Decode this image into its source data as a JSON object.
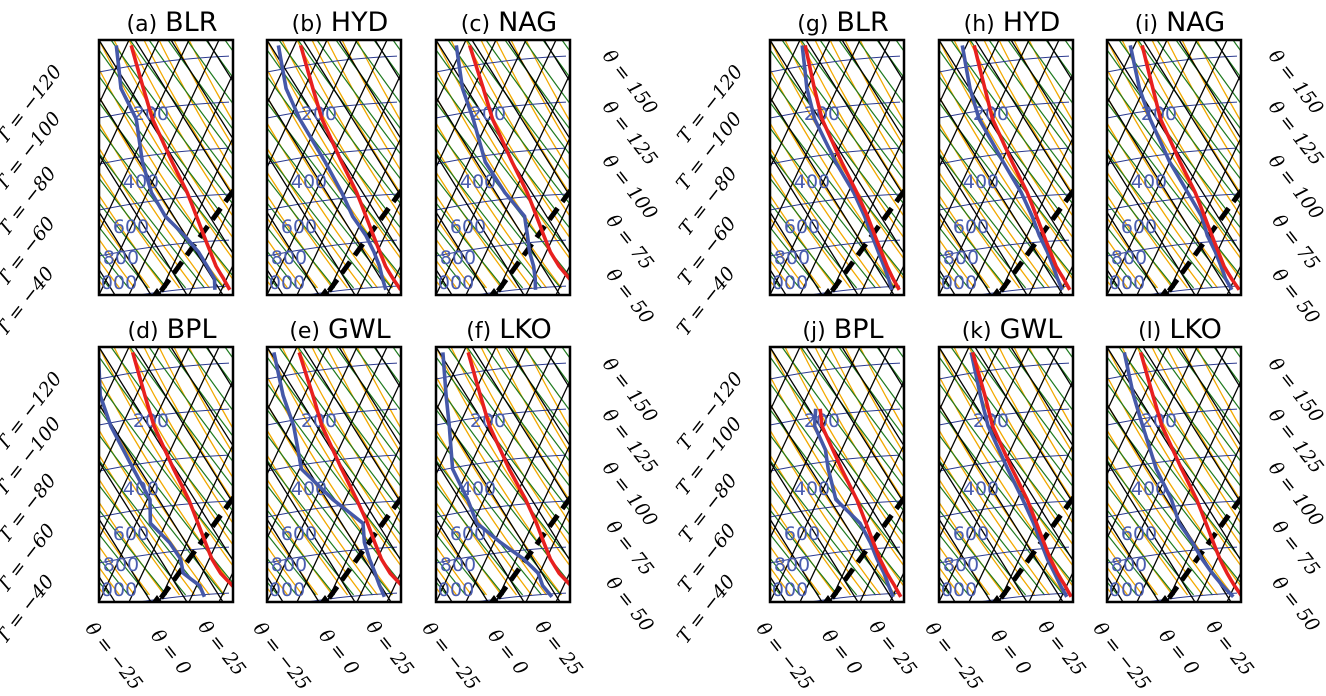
{
  "figure": {
    "colors": {
      "frame": "#000000",
      "isotherm": "#000000",
      "dry_adiabat": "#1f7a1f",
      "moist_adiabat": "#f2a900",
      "isobar": "#2b3a8f",
      "temperature": "#e8201f",
      "dewpoint": "#4558a8",
      "parcel": "#000000"
    },
    "pressure_labels": [
      "200",
      "400",
      "600",
      "800",
      "1000"
    ],
    "left_axis_labels": [
      "T = −120",
      "T = −100",
      "T = −80",
      "T = −60",
      "T = −40"
    ],
    "right_axis_labels": [
      "θ = 150",
      "θ = 125",
      "θ = 100",
      "θ = 75",
      "θ = 50"
    ],
    "bottom_axis_labels": [
      "θ = −25",
      "θ = 0",
      "θ = 25"
    ]
  },
  "chart_data": [
    {
      "type": "line",
      "title": "(a) BLR",
      "tag": "(a)",
      "station": "BLR",
      "temperature": [
        [
          1000,
          27
        ],
        [
          900,
          21
        ],
        [
          800,
          14
        ],
        [
          700,
          8
        ],
        [
          600,
          1
        ],
        [
          500,
          -7
        ],
        [
          400,
          -17
        ],
        [
          300,
          -32
        ],
        [
          200,
          -52
        ],
        [
          150,
          -63
        ],
        [
          100,
          -78
        ]
      ],
      "dewpoint": [
        [
          1000,
          17
        ],
        [
          900,
          15
        ],
        [
          800,
          8
        ],
        [
          700,
          0
        ],
        [
          600,
          -12
        ],
        [
          500,
          -28
        ],
        [
          400,
          -41
        ],
        [
          300,
          -52
        ],
        [
          200,
          -63
        ],
        [
          150,
          -78
        ],
        [
          100,
          -88
        ]
      ]
    },
    {
      "type": "line",
      "title": "(b) HYD",
      "tag": "(b)",
      "station": "HYD",
      "temperature": [
        [
          1000,
          29
        ],
        [
          900,
          22
        ],
        [
          800,
          15
        ],
        [
          700,
          9
        ],
        [
          600,
          2
        ],
        [
          500,
          -6
        ],
        [
          400,
          -16
        ],
        [
          300,
          -31
        ],
        [
          200,
          -51
        ],
        [
          150,
          -62
        ],
        [
          100,
          -77
        ]
      ],
      "dewpoint": [
        [
          1000,
          19
        ],
        [
          900,
          15
        ],
        [
          800,
          11
        ],
        [
          700,
          5
        ],
        [
          600,
          -3
        ],
        [
          500,
          -15
        ],
        [
          400,
          -26
        ],
        [
          300,
          -42
        ],
        [
          200,
          -66
        ],
        [
          150,
          -80
        ],
        [
          100,
          -92
        ]
      ]
    },
    {
      "type": "line",
      "title": "(c) NAG",
      "tag": "(c)",
      "station": "NAG",
      "temperature": [
        [
          1000,
          36
        ],
        [
          900,
          27
        ],
        [
          800,
          18
        ],
        [
          700,
          10
        ],
        [
          600,
          3
        ],
        [
          500,
          -5
        ],
        [
          400,
          -15
        ],
        [
          300,
          -30
        ],
        [
          200,
          -50
        ],
        [
          150,
          -61
        ],
        [
          100,
          -77
        ]
      ],
      "dewpoint": [
        [
          1000,
          6
        ],
        [
          900,
          4
        ],
        [
          800,
          1
        ],
        [
          700,
          -4
        ],
        [
          600,
          -8
        ],
        [
          500,
          -13
        ],
        [
          400,
          -30
        ],
        [
          300,
          -48
        ],
        [
          200,
          -63
        ],
        [
          150,
          -75
        ],
        [
          100,
          -86
        ]
      ]
    },
    {
      "type": "line",
      "title": "(d) BPL",
      "tag": "(d)",
      "station": "BPL",
      "temperature": [
        [
          1000,
          36
        ],
        [
          900,
          27
        ],
        [
          800,
          17
        ],
        [
          700,
          9
        ],
        [
          600,
          2
        ],
        [
          500,
          -6
        ],
        [
          400,
          -16
        ],
        [
          300,
          -31
        ],
        [
          200,
          -51
        ],
        [
          150,
          -62
        ],
        [
          100,
          -77
        ]
      ],
      "dewpoint": [
        [
          1000,
          10
        ],
        [
          900,
          5
        ],
        [
          800,
          -8
        ],
        [
          700,
          -12
        ],
        [
          600,
          -22
        ],
        [
          500,
          -38
        ],
        [
          400,
          -42
        ],
        [
          300,
          -58
        ],
        [
          200,
          -80
        ],
        [
          150,
          -92
        ],
        [
          100,
          -100
        ]
      ]
    },
    {
      "type": "line",
      "title": "(e) GWL",
      "tag": "(e)",
      "station": "GWL",
      "temperature": [
        [
          1000,
          36
        ],
        [
          900,
          28
        ],
        [
          800,
          18
        ],
        [
          700,
          10
        ],
        [
          600,
          3
        ],
        [
          500,
          -5
        ],
        [
          400,
          -16
        ],
        [
          300,
          -31
        ],
        [
          200,
          -51
        ],
        [
          150,
          -62
        ],
        [
          100,
          -78
        ]
      ],
      "dewpoint": [
        [
          1000,
          18
        ],
        [
          900,
          13
        ],
        [
          800,
          8
        ],
        [
          700,
          2
        ],
        [
          600,
          -4
        ],
        [
          500,
          -8
        ],
        [
          400,
          -32
        ],
        [
          300,
          -58
        ],
        [
          200,
          -70
        ],
        [
          150,
          -82
        ],
        [
          100,
          -95
        ]
      ]
    },
    {
      "type": "line",
      "title": "(f) LKO",
      "tag": "(f)",
      "station": "LKO",
      "temperature": [
        [
          1000,
          38
        ],
        [
          900,
          28
        ],
        [
          800,
          18
        ],
        [
          700,
          10
        ],
        [
          600,
          3
        ],
        [
          500,
          -5
        ],
        [
          400,
          -16
        ],
        [
          300,
          -32
        ],
        [
          200,
          -52
        ],
        [
          150,
          -63
        ],
        [
          100,
          -78
        ]
      ],
      "dewpoint": [
        [
          1000,
          17
        ],
        [
          900,
          9
        ],
        [
          800,
          4
        ],
        [
          700,
          -8
        ],
        [
          600,
          -26
        ],
        [
          500,
          -45
        ],
        [
          400,
          -55
        ],
        [
          300,
          -70
        ],
        [
          200,
          -79
        ],
        [
          150,
          -86
        ],
        [
          100,
          -95
        ]
      ]
    },
    {
      "type": "line",
      "title": "(g) BLR",
      "tag": "(g)",
      "station": "BLR",
      "temperature": [
        [
          1000,
          26
        ],
        [
          900,
          20
        ],
        [
          800,
          14
        ],
        [
          700,
          8
        ],
        [
          600,
          1
        ],
        [
          500,
          -7
        ],
        [
          400,
          -18
        ],
        [
          300,
          -33
        ],
        [
          200,
          -53
        ],
        [
          150,
          -63
        ],
        [
          100,
          -76
        ]
      ],
      "dewpoint": [
        [
          1000,
          21
        ],
        [
          900,
          17
        ],
        [
          800,
          12
        ],
        [
          700,
          6
        ],
        [
          600,
          -1
        ],
        [
          500,
          -9
        ],
        [
          400,
          -20
        ],
        [
          300,
          -37
        ],
        [
          200,
          -58
        ],
        [
          150,
          -68
        ],
        [
          100,
          -78
        ]
      ]
    },
    {
      "type": "line",
      "title": "(h) HYD",
      "tag": "(h)",
      "station": "HYD",
      "temperature": [
        [
          1000,
          27
        ],
        [
          900,
          21
        ],
        [
          800,
          14
        ],
        [
          700,
          8
        ],
        [
          600,
          1
        ],
        [
          500,
          -7
        ],
        [
          400,
          -17
        ],
        [
          300,
          -32
        ],
        [
          200,
          -52
        ],
        [
          150,
          -62
        ],
        [
          100,
          -76
        ]
      ],
      "dewpoint": [
        [
          1000,
          22
        ],
        [
          900,
          17
        ],
        [
          800,
          12
        ],
        [
          700,
          6
        ],
        [
          600,
          -2
        ],
        [
          500,
          -10
        ],
        [
          400,
          -21
        ],
        [
          300,
          -38
        ],
        [
          200,
          -61
        ],
        [
          150,
          -72
        ],
        [
          100,
          -84
        ]
      ]
    },
    {
      "type": "line",
      "title": "(i) NAG",
      "tag": "(i)",
      "station": "NAG",
      "temperature": [
        [
          1000,
          28
        ],
        [
          900,
          21
        ],
        [
          800,
          14
        ],
        [
          700,
          8
        ],
        [
          600,
          1
        ],
        [
          500,
          -7
        ],
        [
          400,
          -17
        ],
        [
          300,
          -32
        ],
        [
          200,
          -52
        ],
        [
          150,
          -62
        ],
        [
          100,
          -76
        ]
      ],
      "dewpoint": [
        [
          1000,
          23
        ],
        [
          900,
          17
        ],
        [
          800,
          12
        ],
        [
          700,
          6
        ],
        [
          600,
          -2
        ],
        [
          500,
          -9
        ],
        [
          400,
          -22
        ],
        [
          300,
          -39
        ],
        [
          200,
          -59
        ],
        [
          150,
          -71
        ],
        [
          100,
          -84
        ]
      ]
    },
    {
      "type": "line",
      "title": "(j) BPL",
      "tag": "(j)",
      "station": "BPL",
      "temperature": [
        [
          1000,
          27
        ],
        [
          900,
          21
        ],
        [
          800,
          14
        ],
        [
          700,
          7
        ],
        [
          600,
          0
        ],
        [
          500,
          -8
        ],
        [
          400,
          -18
        ],
        [
          300,
          -33
        ],
        [
          200,
          -53
        ],
        [
          170,
          -57
        ]
      ],
      "dewpoint": [
        [
          1000,
          22
        ],
        [
          900,
          17
        ],
        [
          800,
          12
        ],
        [
          700,
          5
        ],
        [
          600,
          -2
        ],
        [
          500,
          -12
        ],
        [
          400,
          -32
        ],
        [
          300,
          -42
        ],
        [
          250,
          -47
        ],
        [
          200,
          -58
        ],
        [
          170,
          -60
        ]
      ]
    },
    {
      "type": "line",
      "title": "(k) GWL",
      "tag": "(k)",
      "station": "GWL",
      "temperature": [
        [
          1000,
          28
        ],
        [
          900,
          22
        ],
        [
          800,
          15
        ],
        [
          700,
          8
        ],
        [
          600,
          1
        ],
        [
          500,
          -7
        ],
        [
          400,
          -17
        ],
        [
          300,
          -32
        ],
        [
          200,
          -52
        ],
        [
          150,
          -62
        ],
        [
          100,
          -77
        ]
      ],
      "dewpoint": [
        [
          1000,
          25
        ],
        [
          900,
          19
        ],
        [
          800,
          13
        ],
        [
          700,
          6
        ],
        [
          600,
          -1
        ],
        [
          500,
          -9
        ],
        [
          400,
          -20
        ],
        [
          300,
          -35
        ],
        [
          200,
          -55
        ],
        [
          150,
          -65
        ],
        [
          100,
          -78
        ]
      ]
    },
    {
      "type": "line",
      "title": "(l) LKO",
      "tag": "(l)",
      "station": "LKO",
      "temperature": [
        [
          1000,
          30
        ],
        [
          900,
          23
        ],
        [
          800,
          16
        ],
        [
          700,
          9
        ],
        [
          600,
          2
        ],
        [
          500,
          -6
        ],
        [
          400,
          -16
        ],
        [
          300,
          -31
        ],
        [
          200,
          -51
        ],
        [
          150,
          -62
        ],
        [
          100,
          -77
        ]
      ],
      "dewpoint": [
        [
          1000,
          24
        ],
        [
          900,
          15
        ],
        [
          800,
          6
        ],
        [
          700,
          -3
        ],
        [
          600,
          -12
        ],
        [
          500,
          -24
        ],
        [
          400,
          -33
        ],
        [
          300,
          -48
        ],
        [
          200,
          -64
        ],
        [
          150,
          -75
        ],
        [
          100,
          -88
        ]
      ]
    }
  ]
}
